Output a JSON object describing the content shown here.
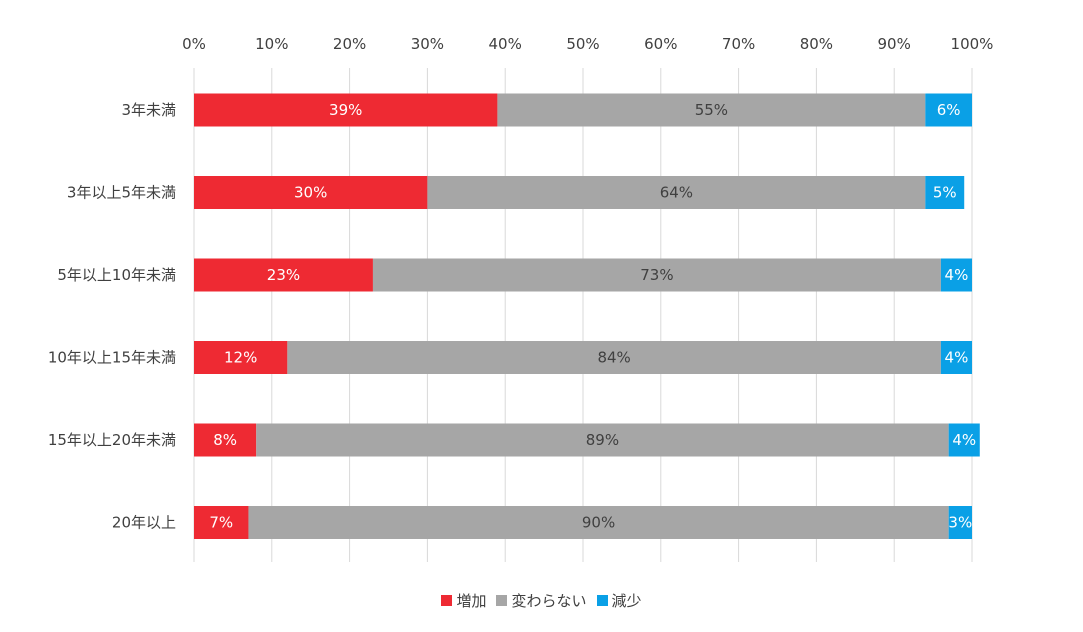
{
  "chart_data": {
    "type": "bar",
    "orientation": "horizontal",
    "stacked": true,
    "categories": [
      "3年未満",
      "3年以上5年未満",
      "5年以上10年未満",
      "10年以上15年未満",
      "15年以上20年未満",
      "20年以上"
    ],
    "series": [
      {
        "name": "増加",
        "color": "#ee2a33",
        "label_color": "#ffffff",
        "values": [
          39,
          30,
          23,
          12,
          8,
          7
        ]
      },
      {
        "name": "変わらない",
        "color": "#a6a6a6",
        "label_color": "#404040",
        "values": [
          55,
          64,
          73,
          84,
          89,
          90
        ]
      },
      {
        "name": "減少",
        "color": "#0aa0e6",
        "label_color": "#ffffff",
        "values": [
          6,
          5,
          4,
          4,
          4,
          3
        ]
      }
    ],
    "xaxis": {
      "position": "top",
      "min": 0,
      "max": 100,
      "ticks": [
        "0%",
        "10%",
        "20%",
        "30%",
        "40%",
        "50%",
        "60%",
        "70%",
        "80%",
        "90%",
        "100%"
      ]
    },
    "grid": true,
    "legend": "bottom-center",
    "data_labels": [
      "39%",
      "55%",
      "6%",
      "30%",
      "64%",
      "5%",
      "23%",
      "73%",
      "4%",
      "12%",
      "84%",
      "4%",
      "8%",
      "89%",
      "4%",
      "7%",
      "90%",
      "3%"
    ]
  }
}
